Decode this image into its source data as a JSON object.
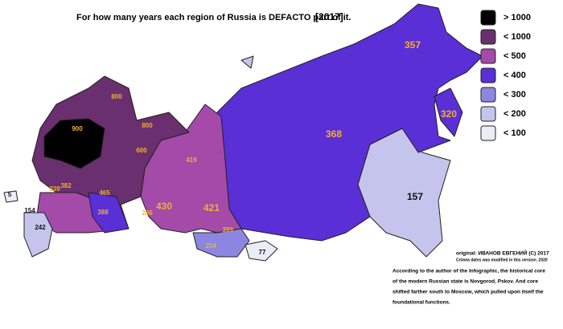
{
  "title": "For how many years each region of Russia is DEFACTO part of it.",
  "title_year": "[2017]",
  "legend": [
    {
      "label": "> 1000",
      "color": "#000000"
    },
    {
      "label": "< 1000",
      "color": "#6a2f6e"
    },
    {
      "label": "< 500",
      "color": "#a44aa8"
    },
    {
      "label": "< 400",
      "color": "#5a2fd6"
    },
    {
      "label": "< 300",
      "color": "#8c86e0"
    },
    {
      "label": "< 200",
      "color": "#c4c4ec"
    },
    {
      "label": "< 100",
      "color": "#ecebf8"
    }
  ],
  "region_labels": [
    800,
    900,
    800,
    600,
    419,
    368,
    357,
    320,
    157,
    430,
    421,
    465,
    382,
    339,
    388,
    236,
    399,
    254,
    77,
    242,
    5,
    154
  ],
  "credits": {
    "original": "original: ИВАНОВ ЕВГЕНИЙ (С) 2017",
    "modified": "Crimea dates was modified in this version_2020",
    "note": [
      "According to the author of the Infographic, the historical core",
      "of the modern Russian state is Novgorod, Pskov. And core",
      "shifted farther south to Moscow, which pulled upon itself the",
      "foundational functions."
    ]
  }
}
